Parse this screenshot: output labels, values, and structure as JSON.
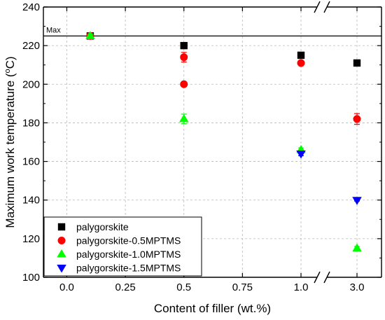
{
  "chart_data": {
    "type": "scatter",
    "xlabel": "Content of filler (wt.%)",
    "ylabel": "Maximum work temperature (",
    "ylabel_sup": "o",
    "ylabel_tail": "C)",
    "ylim": [
      100,
      240
    ],
    "yticks": [
      100,
      120,
      140,
      160,
      180,
      200,
      220,
      240
    ],
    "x_axis": {
      "type": "broken",
      "segment1_range": [
        -0.1,
        1.0
      ],
      "segment2_range": [
        1.0,
        3.0
      ],
      "tick_values": [
        0.0,
        0.25,
        0.5,
        0.75,
        1.0,
        3.0
      ],
      "tick_labels": [
        "0.0",
        "0.25",
        "0.5",
        "0.75",
        "1.0",
        "3.0"
      ]
    },
    "reference_line": {
      "y": 225,
      "label": "Max"
    },
    "series": [
      {
        "name": "palygorskite",
        "marker": "square",
        "color": "#000000",
        "points": [
          {
            "x": 0.1,
            "y": 225,
            "err": 1.2
          },
          {
            "x": 0.5,
            "y": 220,
            "err": 1.5
          },
          {
            "x": 1.0,
            "y": 215,
            "err": 1.5
          },
          {
            "x": 3.0,
            "y": 211,
            "err": 1.5
          }
        ]
      },
      {
        "name": "palygorskite-0.5MPTMS",
        "marker": "circle",
        "color": "#ff0000",
        "points": [
          {
            "x": 0.1,
            "y": 225,
            "err": 1.0
          },
          {
            "x": 0.5,
            "y": 214,
            "err": 2.5
          },
          {
            "x": 0.5,
            "y": 200,
            "err": 1.0
          },
          {
            "x": 1.0,
            "y": 211,
            "err": 1.0
          },
          {
            "x": 3.0,
            "y": 182,
            "err": 2.8
          }
        ]
      },
      {
        "name": "palygorskite-1.0MPTMS",
        "marker": "triangle-up",
        "color": "#00ff00",
        "points": [
          {
            "x": 0.1,
            "y": 225,
            "err": 1.0
          },
          {
            "x": 0.5,
            "y": 182,
            "err": 2.5
          },
          {
            "x": 1.0,
            "y": 166,
            "err": 1.0
          },
          {
            "x": 3.0,
            "y": 115,
            "err": 1.0
          }
        ]
      },
      {
        "name": "palygorskite-1.5MPTMS",
        "marker": "triangle-down",
        "color": "#0000ff",
        "points": [
          {
            "x": 1.0,
            "y": 164,
            "err": 1.0
          },
          {
            "x": 3.0,
            "y": 140,
            "err": 0.5
          }
        ]
      }
    ],
    "legend_position": "bottom-left",
    "grid": true
  }
}
